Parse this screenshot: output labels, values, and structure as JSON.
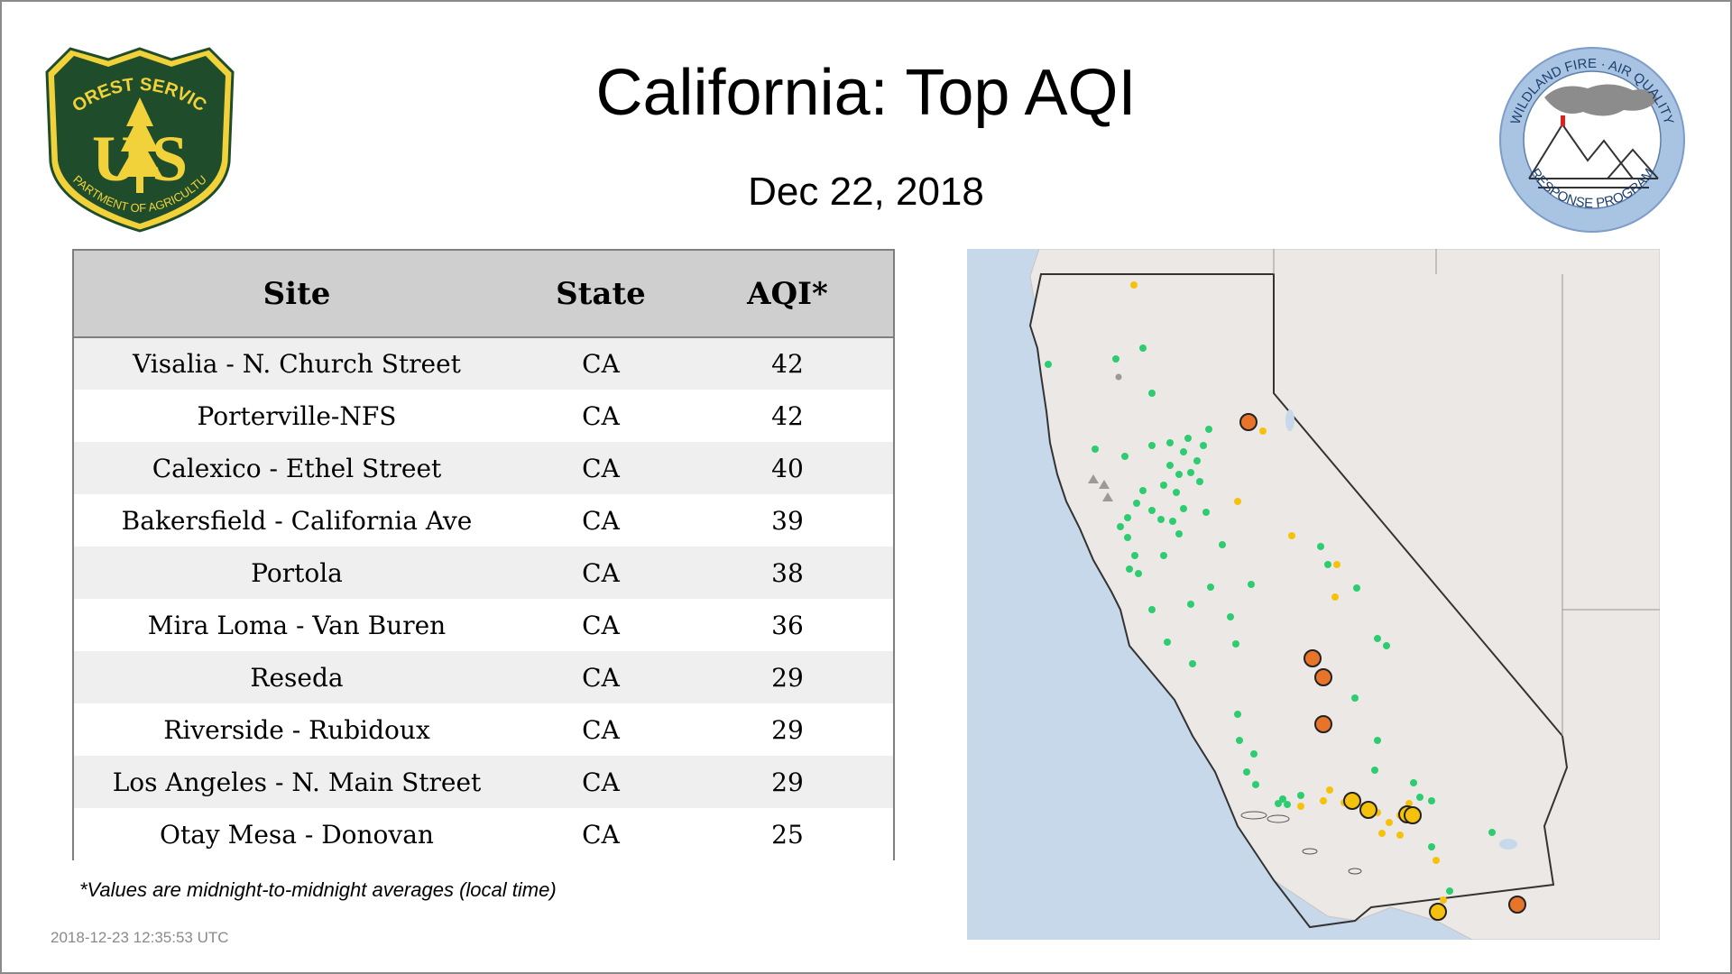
{
  "header": {
    "title": "California: Top AQI",
    "date": "Dec 22, 2018"
  },
  "logos": {
    "left": {
      "name": "forest-service-shield",
      "arc_text": "FOREST SERVICE",
      "letters": "U S",
      "bottom_text": "DEPARTMENT OF AGRICULTURE"
    },
    "right": {
      "name": "wildland-fire-air-quality-seal",
      "top_text": "WILDLAND FIRE · AIR QUALITY",
      "bottom_text": "RESPONSE PROGRAM"
    }
  },
  "table": {
    "columns": [
      "Site",
      "State",
      "AQI*"
    ],
    "rows": [
      {
        "site": "Visalia - N. Church Street",
        "state": "CA",
        "aqi": "42"
      },
      {
        "site": "Porterville-NFS",
        "state": "CA",
        "aqi": "42"
      },
      {
        "site": "Calexico - Ethel Street",
        "state": "CA",
        "aqi": "40"
      },
      {
        "site": "Bakersfield - California Ave",
        "state": "CA",
        "aqi": "39"
      },
      {
        "site": "Portola",
        "state": "CA",
        "aqi": "38"
      },
      {
        "site": "Mira Loma - Van Buren",
        "state": "CA",
        "aqi": "36"
      },
      {
        "site": "Reseda",
        "state": "CA",
        "aqi": "29"
      },
      {
        "site": "Riverside - Rubidoux",
        "state": "CA",
        "aqi": "29"
      },
      {
        "site": "Los Angeles - N. Main Street",
        "state": "CA",
        "aqi": "29"
      },
      {
        "site": "Otay Mesa - Donovan",
        "state": "CA",
        "aqi": "25"
      }
    ]
  },
  "footnote": "*Values are midnight-to-midnight averages (local time)",
  "timestamp": "2018-12-23 12:35:53 UTC",
  "colors": {
    "good": "#2ecc71",
    "moderate": "#f4c20d",
    "usg": "#e8742a",
    "water": "#c6d8ea",
    "land": "#ede9e6",
    "header_bg": "#cfcfcf",
    "shield_green": "#1f4d2b",
    "shield_gold": "#e8c832"
  }
}
